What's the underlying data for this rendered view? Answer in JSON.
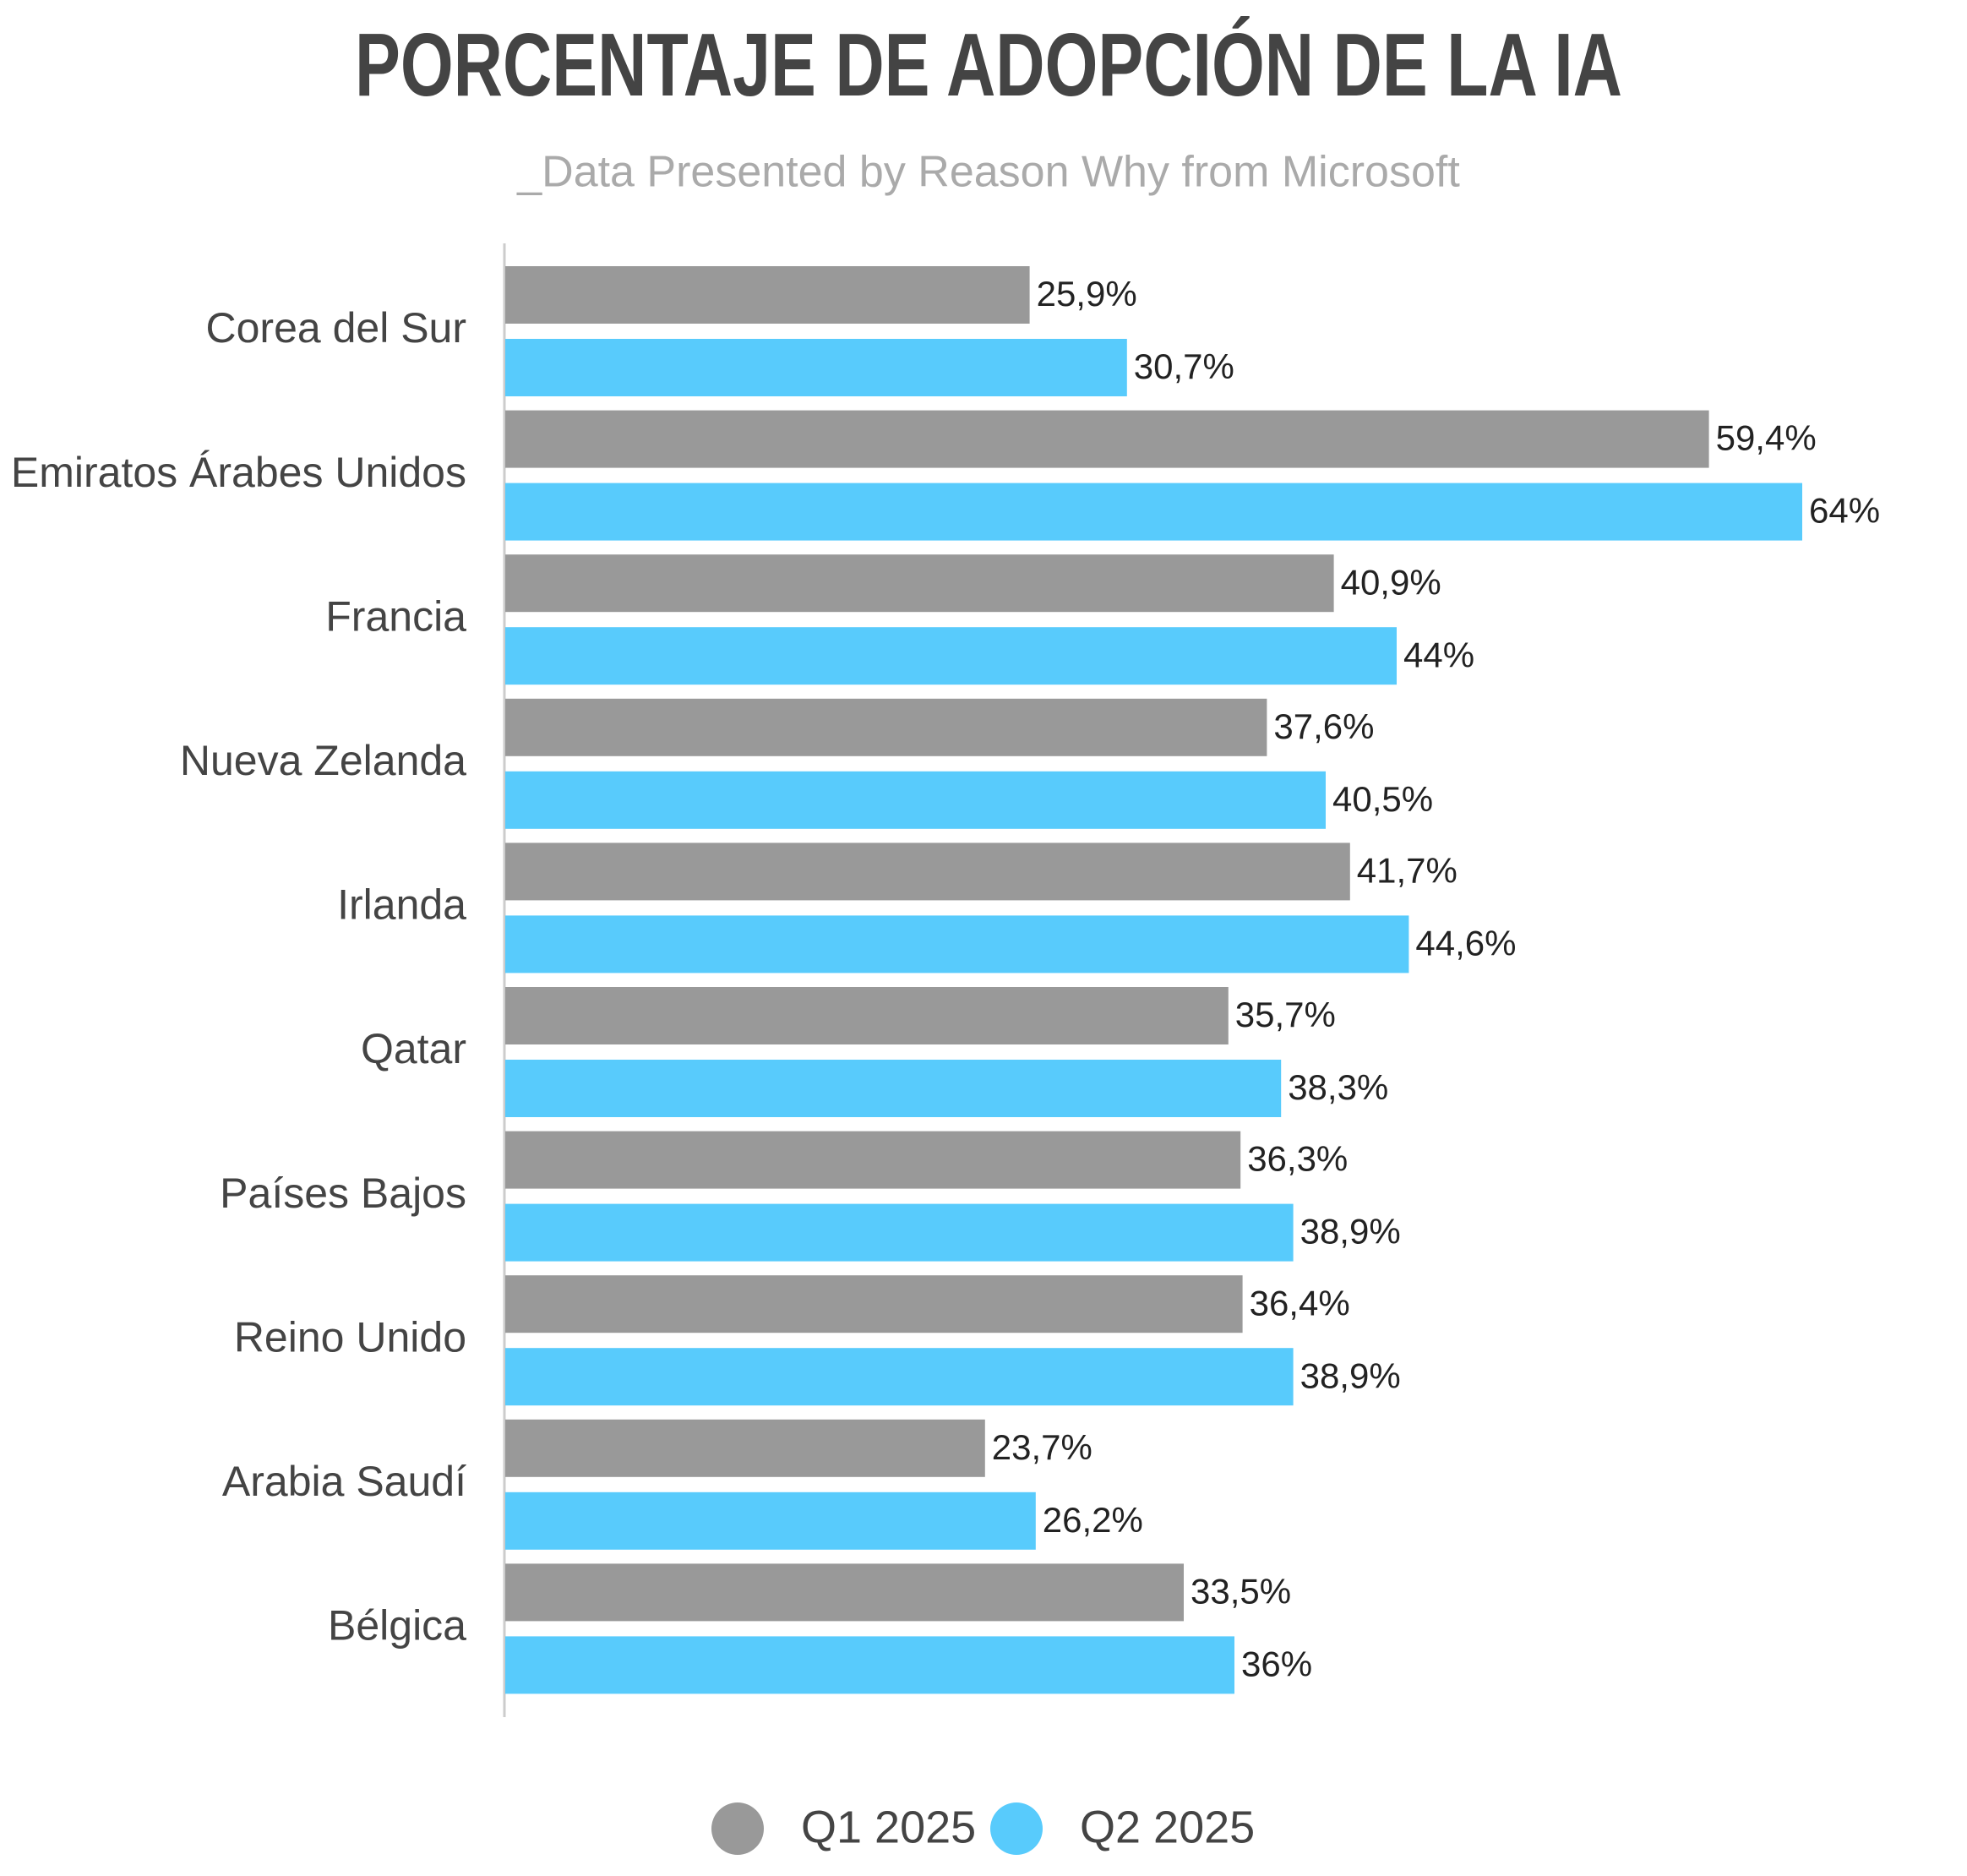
{
  "chart_data": {
    "type": "bar",
    "orientation": "horizontal",
    "title": "PORCENTAJE DE ADOPCIÓN DE LA IA",
    "subtitle": "_Data Presented by Reason Why from Microsoft",
    "categories": [
      "Corea del Sur",
      "Emiratos Árabes Unidos",
      "Francia",
      "Nueva Zelanda",
      "Irlanda",
      "Qatar",
      "Países Bajos",
      "Reino Unido",
      "Arabia Saudí",
      "Bélgica"
    ],
    "series": [
      {
        "name": "Q1 2025",
        "color": "#999999",
        "values": [
          25.9,
          59.4,
          40.9,
          37.6,
          41.7,
          35.7,
          36.3,
          36.4,
          23.7,
          33.5
        ],
        "value_labels": [
          "25,9%",
          "59,4%",
          "40,9%",
          "37,6%",
          "41,7%",
          "35,7%",
          "36,3%",
          "36,4%",
          "23,7%",
          "33,5%"
        ]
      },
      {
        "name": "Q2 2025",
        "color": "#58cbfc",
        "values": [
          30.7,
          64,
          44,
          40.5,
          44.6,
          38.3,
          38.9,
          38.9,
          26.2,
          36
        ],
        "value_labels": [
          "30,7%",
          "64%",
          "44%",
          "40,5%",
          "44,6%",
          "38,3%",
          "38,9%",
          "38,9%",
          "26,2%",
          "36%"
        ]
      }
    ]
  }
}
